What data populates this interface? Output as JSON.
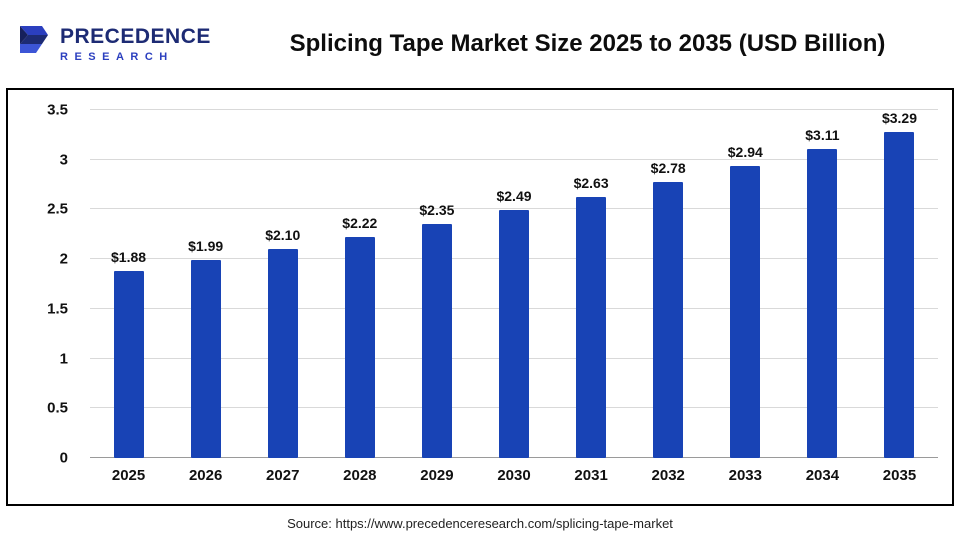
{
  "header": {
    "logo": {
      "line1": "PRECEDENCE",
      "line2": "RESEARCH"
    },
    "title": "Splicing Tape Market Size 2025 to 2035 (USD Billion)"
  },
  "chart_data": {
    "type": "bar",
    "title": "Splicing Tape Market Size 2025 to 2035 (USD Billion)",
    "categories": [
      "2025",
      "2026",
      "2027",
      "2028",
      "2029",
      "2030",
      "2031",
      "2032",
      "2033",
      "2034",
      "2035"
    ],
    "values": [
      1.88,
      1.99,
      2.1,
      2.22,
      2.35,
      2.49,
      2.63,
      2.78,
      2.94,
      3.11,
      3.29
    ],
    "value_labels": [
      "$1.88",
      "$1.99",
      "$2.10",
      "$2.22",
      "$2.35",
      "$2.49",
      "$2.63",
      "$2.78",
      "$2.94",
      "$3.11",
      "$3.29"
    ],
    "xlabel": "",
    "ylabel": "",
    "ylim": [
      0,
      3.5
    ],
    "yticks": [
      0,
      0.5,
      1,
      1.5,
      2,
      2.5,
      3,
      3.5
    ],
    "ytick_labels": [
      "0",
      "0.5",
      "1",
      "1.5",
      "2",
      "2.5",
      "3",
      "3.5"
    ],
    "grid": true,
    "legend": false,
    "bar_color": "#1843B5"
  },
  "footer": {
    "source": "Source: https://www.precedenceresearch.com/splicing-tape-market"
  },
  "colors": {
    "logo_dark_blue": "#1d2b74",
    "logo_light_blue": "#2b3fbf",
    "border": "#000000",
    "gridline": "#d9d9d9"
  }
}
